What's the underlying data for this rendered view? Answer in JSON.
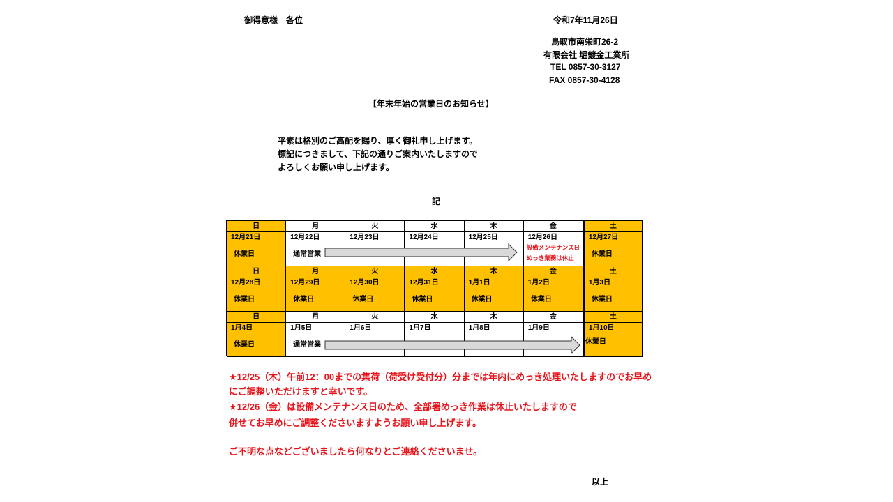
{
  "header": {
    "addressee": "御得意様　各位",
    "date": "令和7年11月26日",
    "address": "鳥取市南栄町26-2",
    "company": "有限会社 堀鍍金工業所",
    "tel": "TEL 0857-30-3127",
    "fax": "FAX 0857-30-4128"
  },
  "title": "【年末年始の営業日のお知らせ】",
  "greeting": [
    "平素は格別のご高配を賜り、厚く御礼申し上げます。",
    "標記につきまして、下記の通りご案内いたしますので",
    "よろしくお願い申し上げます。"
  ],
  "ki": "記",
  "calendar": {
    "colors": {
      "holiday": "#ffc000",
      "workday": "#ffffff",
      "arrow": "#d9d9d9"
    },
    "weeks": [
      {
        "days": [
          "日",
          "月",
          "火",
          "水",
          "木",
          "金",
          "土"
        ],
        "dates": [
          "12月21日",
          "12月22日",
          "12月23日",
          "12月24日",
          "12月25日",
          "12月26日",
          "12月27日"
        ],
        "labels": [
          "休業日",
          "通常営業",
          "",
          "",
          "",
          "",
          "休業日"
        ],
        "holiday": [
          true,
          false,
          false,
          false,
          false,
          false,
          true
        ],
        "notes": [
          "設備メンテナンス日",
          "めっき業務は休止"
        ]
      },
      {
        "days": [
          "日",
          "月",
          "火",
          "水",
          "木",
          "金",
          "土"
        ],
        "dates": [
          "12月28日",
          "12月29日",
          "12月30日",
          "12月31日",
          "1月1日",
          "1月2日",
          "1月3日"
        ],
        "labels": [
          "休業日",
          "休業日",
          "休業日",
          "休業日",
          "休業日",
          "休業日",
          "休業日"
        ],
        "holiday": [
          true,
          true,
          true,
          true,
          true,
          true,
          true
        ]
      },
      {
        "days": [
          "日",
          "月",
          "火",
          "水",
          "木",
          "金",
          "土"
        ],
        "dates": [
          "1月4日",
          "1月5日",
          "1月6日",
          "1月7日",
          "1月8日",
          "1月9日",
          "1月10日"
        ],
        "labels": [
          "休業日",
          "通常営業",
          "",
          "",
          "",
          "",
          "休業日"
        ],
        "holiday": [
          true,
          false,
          false,
          false,
          false,
          false,
          true
        ]
      }
    ]
  },
  "notices": [
    "★12/25（木）午前12：00までの集荷（荷受け受付分）分までは年内にめっき処理いたしますのでお早め",
    "にご調整いただけますと幸いです。",
    "★12/26（金）は設備メンテナンス日のため、全部署めっき作業は休止いたしますので",
    "併せてお早めにご調整くださいますようお願い申し上げます。",
    "ご不明な点などございましたら何なりとご連絡くださいませ。"
  ],
  "closing": "以上"
}
